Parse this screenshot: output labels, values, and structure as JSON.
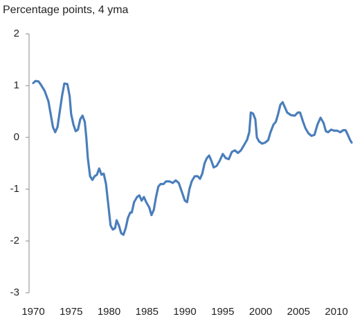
{
  "chart_data": {
    "type": "line",
    "title": "Percentage points, 4 yma",
    "x": [
      1970.0,
      1970.3,
      1970.7,
      1971.0,
      1971.5,
      1972.0,
      1972.3,
      1972.6,
      1972.9,
      1973.2,
      1973.5,
      1973.8,
      1974.1,
      1974.5,
      1974.8,
      1975.0,
      1975.3,
      1975.6,
      1975.9,
      1976.2,
      1976.5,
      1976.8,
      1977.0,
      1977.2,
      1977.5,
      1977.8,
      1978.1,
      1978.4,
      1978.7,
      1979.0,
      1979.3,
      1979.6,
      1979.9,
      1980.2,
      1980.5,
      1980.8,
      1981.0,
      1981.3,
      1981.6,
      1981.9,
      1982.2,
      1982.5,
      1982.8,
      1983.0,
      1983.3,
      1983.7,
      1984.0,
      1984.3,
      1984.6,
      1984.9,
      1985.3,
      1985.6,
      1985.9,
      1986.2,
      1986.5,
      1986.8,
      1987.2,
      1987.5,
      1988.0,
      1988.4,
      1988.8,
      1989.2,
      1989.6,
      1990.0,
      1990.3,
      1990.6,
      1990.9,
      1991.3,
      1991.7,
      1992.0,
      1992.3,
      1992.6,
      1992.9,
      1993.2,
      1993.5,
      1993.8,
      1994.2,
      1994.6,
      1995.0,
      1995.4,
      1995.8,
      1996.2,
      1996.6,
      1997.0,
      1997.4,
      1997.8,
      1998.2,
      1998.5,
      1998.7,
      1999.0,
      1999.3,
      1999.5,
      1999.8,
      2000.2,
      2000.6,
      2001.0,
      2001.3,
      2001.7,
      2002.0,
      2002.3,
      2002.6,
      2002.9,
      2003.2,
      2003.5,
      2004.0,
      2004.5,
      2004.9,
      2005.2,
      2005.6,
      2005.9,
      2006.3,
      2006.7,
      2007.1,
      2007.5,
      2007.9,
      2008.3,
      2008.6,
      2008.9,
      2009.3,
      2009.7,
      2010.1,
      2010.5,
      2010.9,
      2011.2,
      2011.5,
      2011.8,
      2012.0
    ],
    "series": [
      {
        "name": "Percentage points",
        "color": "#4a7ebb",
        "values": [
          1.05,
          1.09,
          1.08,
          1.02,
          0.9,
          0.7,
          0.45,
          0.2,
          0.1,
          0.2,
          0.5,
          0.8,
          1.04,
          1.03,
          0.8,
          0.45,
          0.25,
          0.12,
          0.15,
          0.35,
          0.42,
          0.3,
          0.0,
          -0.4,
          -0.75,
          -0.82,
          -0.75,
          -0.72,
          -0.6,
          -0.72,
          -0.7,
          -0.9,
          -1.3,
          -1.7,
          -1.78,
          -1.75,
          -1.6,
          -1.7,
          -1.85,
          -1.88,
          -1.75,
          -1.55,
          -1.45,
          -1.45,
          -1.25,
          -1.15,
          -1.12,
          -1.22,
          -1.15,
          -1.25,
          -1.35,
          -1.5,
          -1.4,
          -1.15,
          -0.95,
          -0.9,
          -0.9,
          -0.85,
          -0.85,
          -0.88,
          -0.83,
          -0.88,
          -1.05,
          -1.22,
          -1.25,
          -1.0,
          -0.85,
          -0.75,
          -0.75,
          -0.8,
          -0.7,
          -0.5,
          -0.4,
          -0.35,
          -0.45,
          -0.58,
          -0.55,
          -0.45,
          -0.32,
          -0.4,
          -0.42,
          -0.28,
          -0.25,
          -0.3,
          -0.25,
          -0.15,
          -0.05,
          0.1,
          0.48,
          0.46,
          0.35,
          0.0,
          -0.08,
          -0.12,
          -0.1,
          -0.05,
          0.1,
          0.25,
          0.3,
          0.45,
          0.63,
          0.68,
          0.58,
          0.48,
          0.43,
          0.42,
          0.48,
          0.48,
          0.3,
          0.18,
          0.08,
          0.03,
          0.05,
          0.25,
          0.38,
          0.28,
          0.12,
          0.1,
          0.15,
          0.13,
          0.13,
          0.1,
          0.14,
          0.14,
          0.05,
          -0.05,
          -0.1
        ]
      }
    ],
    "xlim": [
      1969.45,
      2012.0
    ],
    "xticks": [
      1970,
      1975,
      1980,
      1985,
      1990,
      1995,
      2000,
      2005,
      2010
    ],
    "ylim": [
      -3,
      2
    ],
    "yticks": [
      -3,
      -2,
      -1,
      0,
      1,
      2
    ]
  }
}
